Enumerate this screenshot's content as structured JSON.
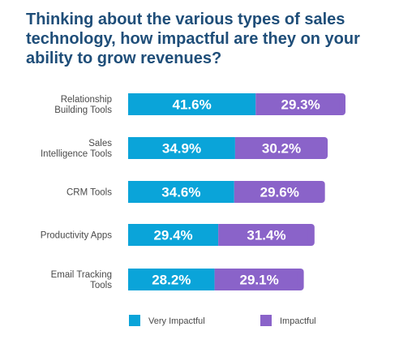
{
  "title_lines": [
    "Thinking about the various types of sales",
    "technology, how impactful are they on your",
    "ability to grow revenues?"
  ],
  "chart_data": {
    "type": "bar",
    "orientation": "horizontal",
    "stacked": true,
    "title": "Thinking about the various types of sales technology, how impactful are they on your ability to grow revenues?",
    "categories": [
      [
        "Relationship",
        "Building Tools"
      ],
      [
        "Sales",
        "Intelligence Tools"
      ],
      [
        "CRM Tools"
      ],
      [
        "Productivity Apps"
      ],
      [
        "Email Tracking",
        "Tools"
      ]
    ],
    "series": [
      {
        "name": "Very Impactful",
        "color": "#0aa4d9",
        "values": [
          41.6,
          34.9,
          34.6,
          29.4,
          28.2
        ],
        "labels": [
          "41.6%",
          "34.9%",
          "34.6%",
          "29.4%",
          "28.2%"
        ]
      },
      {
        "name": "Impactful",
        "color": "#8a63c9",
        "values": [
          29.3,
          30.2,
          29.6,
          31.4,
          29.1
        ],
        "labels": [
          "29.3%",
          "30.2%",
          "29.6%",
          "31.4%",
          "29.1%"
        ]
      }
    ],
    "legend_position": "bottom",
    "grid": false,
    "xlim": [
      0,
      100
    ]
  }
}
